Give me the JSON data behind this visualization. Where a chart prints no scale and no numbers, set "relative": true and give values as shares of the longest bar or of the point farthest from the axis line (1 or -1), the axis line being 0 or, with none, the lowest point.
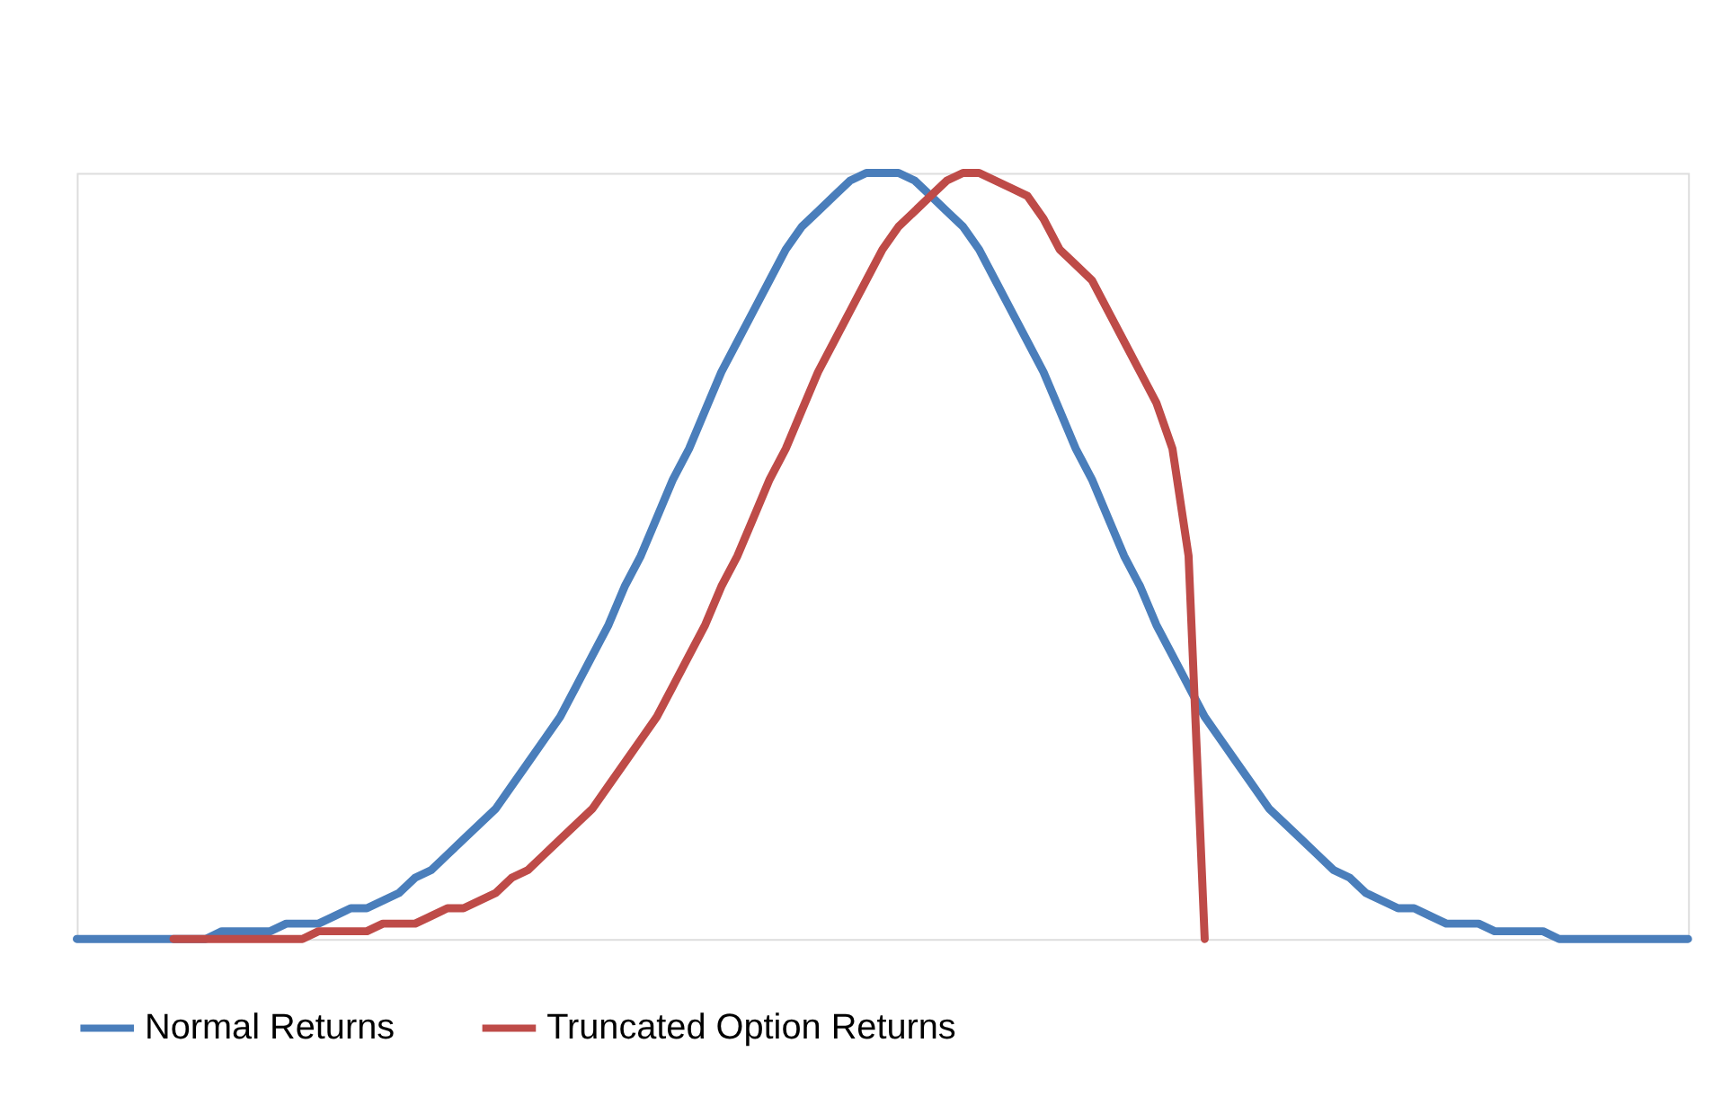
{
  "chart_data": {
    "type": "line",
    "relative": true,
    "legend": "bottom",
    "marker": "none",
    "line_style": "solid",
    "categories": [
      null,
      null,
      null,
      null,
      null,
      null,
      null,
      null,
      null,
      null,
      null,
      null,
      null,
      null,
      null,
      null,
      null,
      null,
      null,
      null,
      null,
      null,
      null,
      null,
      null,
      null,
      null,
      null,
      null,
      null,
      null,
      null,
      null,
      null,
      null,
      null,
      null,
      null,
      null,
      null,
      null,
      null,
      null,
      null,
      null,
      null,
      null,
      null,
      null,
      null,
      null,
      null,
      null,
      null,
      null,
      null,
      null,
      null,
      null,
      null,
      null,
      null,
      null,
      null,
      null,
      null,
      null,
      null,
      null,
      null,
      null,
      null,
      null,
      null,
      null,
      null,
      null,
      null,
      null,
      null,
      null,
      null,
      null,
      null,
      null,
      null,
      null,
      null,
      null,
      null,
      null,
      null,
      null,
      null,
      null,
      null,
      null,
      null,
      null,
      null,
      null
    ],
    "series": [
      {
        "name": "Normal Returns",
        "color": "#4a7ebb",
        "values": [
          0,
          0,
          0,
          0,
          0,
          0,
          0,
          0,
          0,
          0.01,
          0.01,
          0.01,
          0.01,
          0.02,
          0.02,
          0.02,
          0.03,
          0.04,
          0.04,
          0.05,
          0.06,
          0.08,
          0.09,
          0.11,
          0.13,
          0.15,
          0.17,
          0.2,
          0.23,
          0.26,
          0.29,
          0.33,
          0.37,
          0.41,
          0.46,
          0.5,
          0.55,
          0.6,
          0.64,
          0.69,
          0.74,
          0.78,
          0.82,
          0.86,
          0.9,
          0.93,
          0.95,
          0.97,
          0.99,
          1,
          1,
          1,
          0.99,
          0.97,
          0.95,
          0.93,
          0.9,
          0.86,
          0.82,
          0.78,
          0.74,
          0.69,
          0.64,
          0.6,
          0.55,
          0.5,
          0.46,
          0.41,
          0.37,
          0.33,
          0.29,
          0.26,
          0.23,
          0.2,
          0.17,
          0.15,
          0.13,
          0.11,
          0.09,
          0.08,
          0.06,
          0.05,
          0.04,
          0.04,
          0.03,
          0.02,
          0.02,
          0.02,
          0.01,
          0.01,
          0.01,
          0.01,
          0,
          0,
          0,
          0,
          0,
          0,
          0,
          0,
          0
        ]
      },
      {
        "name": "Truncated Option Returns",
        "color": "#be4b48",
        "values": [
          null,
          null,
          null,
          null,
          null,
          null,
          0,
          0,
          0,
          0,
          0,
          0,
          0,
          0,
          0,
          0.01,
          0.01,
          0.01,
          0.01,
          0.02,
          0.02,
          0.02,
          0.03,
          0.04,
          0.04,
          0.05,
          0.06,
          0.08,
          0.09,
          0.11,
          0.13,
          0.15,
          0.17,
          0.2,
          0.23,
          0.26,
          0.29,
          0.33,
          0.37,
          0.41,
          0.46,
          0.5,
          0.55,
          0.6,
          0.64,
          0.69,
          0.74,
          0.78,
          0.82,
          0.86,
          0.9,
          0.93,
          0.95,
          0.97,
          0.99,
          1,
          1,
          0.99,
          0.98,
          0.97,
          0.94,
          0.9,
          0.88,
          0.86,
          0.82,
          0.78,
          0.74,
          0.7,
          0.64,
          0.5,
          0,
          null,
          null,
          null,
          null,
          null,
          null,
          null,
          null,
          null,
          null,
          null,
          null,
          null,
          null,
          null,
          null,
          null,
          null,
          null,
          null,
          null,
          null,
          null,
          null,
          null,
          null,
          null,
          null,
          null,
          null
        ]
      }
    ]
  }
}
